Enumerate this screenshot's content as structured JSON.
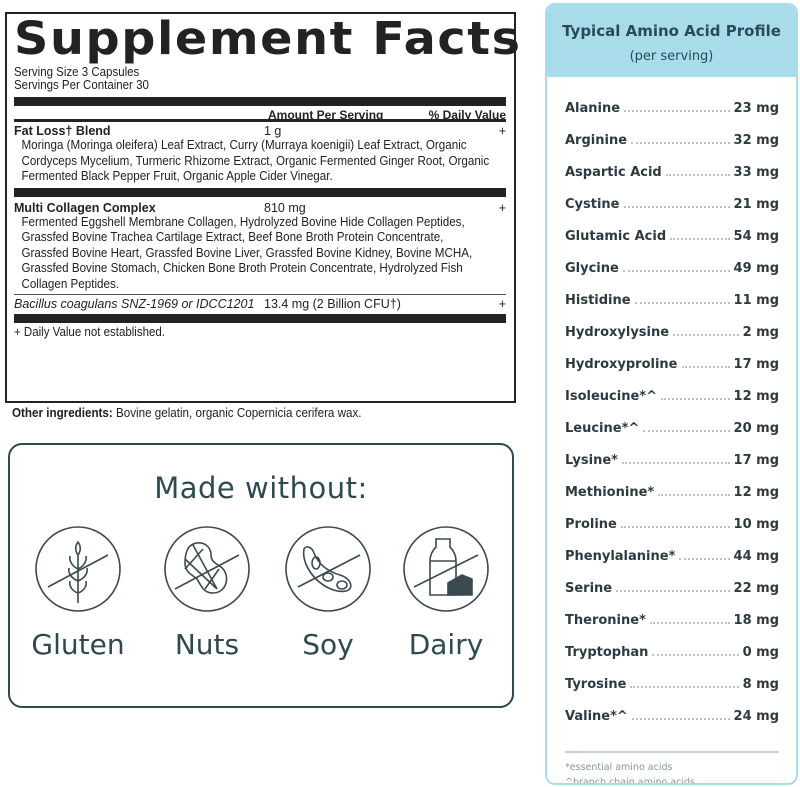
{
  "facts": {
    "title": "Supplement Facts",
    "serving_size": "Serving Size 3 Capsules",
    "servings_per_container": "Servings Per Container 30",
    "col_amount": "Amount Per Serving",
    "col_dv": "% Daily Value",
    "rows": [
      {
        "name": "Fat Loss† Blend",
        "amount": "1 g",
        "dv": "+",
        "desc": [
          "Moringa (Moringa oleifera) Leaf Extract, Curry (Murraya koenigii) Leaf Extract, Organic",
          "Cordyceps Mycelium, Turmeric Rhizome Extract, Organic Fermented Ginger Root, Organic",
          "Fermented Black Pepper Fruit, Organic Apple Cider Vinegar."
        ]
      },
      {
        "name": "Multi Collagen Complex",
        "amount": "810 mg",
        "dv": "+",
        "desc": [
          "Fermented Eggshell Membrane Collagen, Hydrolyzed Bovine Hide Collagen Peptides,",
          "Grassfed Bovine Trachea Cartilage Extract, Beef Bone Broth Protein Concentrate,",
          "Grassfed Bovine Heart, Grassfed Bovine Liver, Grassfed Bovine Kidney, Bovine MCHA,",
          "Grassfed Bovine Stomach, Chicken Bone Broth Protein Concentrate, Hydrolyzed Fish",
          "Collagen Peptides."
        ]
      },
      {
        "name": "Bacillus coagulans SNZ-1969 or IDCC1201",
        "amount": "13.4 mg (2 Billion CFU†)",
        "dv": "+"
      }
    ],
    "footnote": "+ Daily Value not established.",
    "other_label": "Other ingredients:",
    "other_text": " Bovine gelatin, organic Copernicia cerifera wax."
  },
  "made_without": {
    "title": "Made without:",
    "items": [
      {
        "label": "Gluten",
        "icon": "no-gluten-icon"
      },
      {
        "label": "Nuts",
        "icon": "no-nuts-icon"
      },
      {
        "label": "Soy",
        "icon": "no-soy-icon"
      },
      {
        "label": "Dairy",
        "icon": "no-dairy-icon"
      }
    ]
  },
  "amino": {
    "title": "Typical Amino Acid Profile",
    "subtitle": "(per serving)",
    "items": [
      {
        "name": "Alanine",
        "value": "23 mg"
      },
      {
        "name": "Arginine",
        "value": "32 mg"
      },
      {
        "name": "Aspartic Acid",
        "value": "33 mg"
      },
      {
        "name": "Cystine",
        "value": "21 mg"
      },
      {
        "name": "Glutamic Acid",
        "value": "54 mg"
      },
      {
        "name": "Glycine",
        "value": "49 mg"
      },
      {
        "name": "Histidine",
        "value": "11 mg"
      },
      {
        "name": "Hydroxylysine",
        "value": "2 mg"
      },
      {
        "name": "Hydroxyproline",
        "value": "17 mg"
      },
      {
        "name": "Isoleucine*^",
        "value": "12 mg"
      },
      {
        "name": "Leucine*^",
        "value": "20 mg"
      },
      {
        "name": "Lysine*",
        "value": "17 mg"
      },
      {
        "name": "Methionine*",
        "value": "12 mg"
      },
      {
        "name": "Proline",
        "value": "10 mg"
      },
      {
        "name": "Phenylalanine*",
        "value": "44 mg"
      },
      {
        "name": "Serine",
        "value": "22 mg"
      },
      {
        "name": "Theronine*",
        "value": "18 mg"
      },
      {
        "name": "Tryptophan",
        "value": "0 mg"
      },
      {
        "name": "Tyrosine",
        "value": "8 mg"
      },
      {
        "name": "Valine*^",
        "value": "24 mg"
      }
    ],
    "footnotes": [
      "*essential amino acids",
      "^branch chain amino acids"
    ]
  },
  "colors": {
    "header_blue": "#a9dcea",
    "teal_text": "#2e4a50"
  }
}
